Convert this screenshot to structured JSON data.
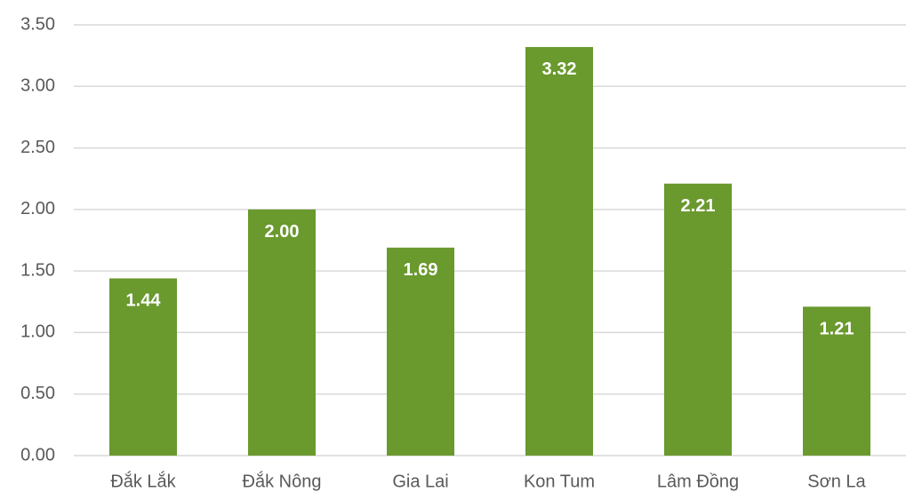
{
  "chart_data": {
    "type": "bar",
    "categories": [
      "Đắk Lắk",
      "Đắk Nông",
      "Gia Lai",
      "Kon Tum",
      "Lâm Đồng",
      "Sơn La"
    ],
    "values": [
      1.44,
      2.0,
      1.69,
      3.32,
      2.21,
      1.21
    ],
    "value_labels": [
      "1.44",
      "2.00",
      "1.69",
      "3.32",
      "2.21",
      "1.21"
    ],
    "color": "#6a992e",
    "ylim": [
      0,
      3.5
    ],
    "yticks": [
      {
        "value": 0,
        "label": "0.00"
      },
      {
        "value": 0.5,
        "label": "0.50"
      },
      {
        "value": 1,
        "label": "1.00"
      },
      {
        "value": 1.5,
        "label": "1.50"
      },
      {
        "value": 2,
        "label": "2.00"
      },
      {
        "value": 2.5,
        "label": "2.50"
      },
      {
        "value": 3,
        "label": "3.00"
      },
      {
        "value": 3.5,
        "label": "3.50"
      }
    ],
    "grid": true
  }
}
